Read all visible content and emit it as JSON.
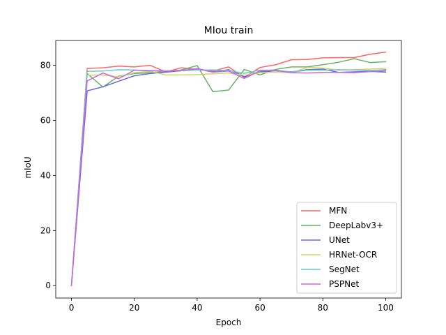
{
  "chart_data": {
    "type": "line",
    "title": "MIou train",
    "xlabel": "Epoch",
    "ylabel": "mIoU",
    "xlim": [
      -5,
      105
    ],
    "ylim": [
      -4.5,
      89
    ],
    "xticks": [
      0,
      20,
      40,
      60,
      80,
      100
    ],
    "yticks": [
      0,
      20,
      40,
      60,
      80
    ],
    "grid": false,
    "legend_position": "lower-right",
    "x": [
      0,
      5,
      10,
      15,
      20,
      25,
      30,
      35,
      40,
      45,
      50,
      55,
      60,
      65,
      70,
      75,
      80,
      85,
      90,
      95,
      100
    ],
    "series": [
      {
        "name": "MFN",
        "color": "#ff6666",
        "values": [
          0,
          78.8,
          79.1,
          79.7,
          79.4,
          80.0,
          77.6,
          79.1,
          78.5,
          77.9,
          79.4,
          75.6,
          79.2,
          80.2,
          82.0,
          82.1,
          82.7,
          82.8,
          82.8,
          84.0,
          84.8
        ]
      },
      {
        "name": "DeepLabv3+",
        "color": "#66b266",
        "values": [
          0,
          77.0,
          72.1,
          76.0,
          77.0,
          77.3,
          77.7,
          78.3,
          79.9,
          70.4,
          71.0,
          78.5,
          76.5,
          78.5,
          79.4,
          79.4,
          80.2,
          81.1,
          82.4,
          81.0,
          81.3
        ]
      },
      {
        "name": "UNet",
        "color": "#6666e6",
        "values": [
          0,
          70.7,
          72.2,
          74.2,
          76.2,
          77.0,
          77.5,
          78.0,
          78.8,
          77.6,
          78.4,
          75.8,
          77.6,
          78.0,
          77.6,
          78.4,
          78.6,
          77.4,
          77.6,
          77.8,
          77.5
        ]
      },
      {
        "name": "HRNet-OCR",
        "color": "#d3d366",
        "values": [
          0,
          76.4,
          76.5,
          75.8,
          77.3,
          77.8,
          76.5,
          76.5,
          76.6,
          76.9,
          77.2,
          76.4,
          77.3,
          77.5,
          77.3,
          79.2,
          79.0,
          78.2,
          78.4,
          78.6,
          78.9
        ]
      },
      {
        "name": "SegNet",
        "color": "#66cccc",
        "values": [
          0,
          77.8,
          77.9,
          78.4,
          78.3,
          78.1,
          77.9,
          78.0,
          78.3,
          78.3,
          78.1,
          77.1,
          78.2,
          78.3,
          77.5,
          78.2,
          78.2,
          78.4,
          78.3,
          78.1,
          78.4
        ]
      },
      {
        "name": "PSPNet",
        "color": "#cc66e0",
        "values": [
          0,
          74.3,
          77.2,
          75.1,
          78.2,
          78.0,
          77.9,
          78.1,
          78.7,
          77.5,
          77.9,
          75.2,
          78.0,
          78.1,
          77.3,
          77.2,
          77.4,
          77.4,
          77.3,
          77.7,
          78.0
        ]
      }
    ]
  }
}
